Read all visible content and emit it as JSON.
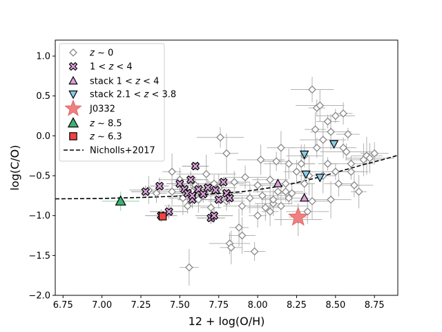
{
  "chart_data": {
    "type": "scatter",
    "xlabel": "12 + log(O/H)",
    "ylabel": "log(C/O)",
    "xlim": [
      6.7,
      8.9
    ],
    "ylim": [
      -2.0,
      1.2
    ],
    "x_ticks": [
      6.75,
      7.0,
      7.25,
      7.5,
      7.75,
      8.0,
      8.25,
      8.5,
      8.75
    ],
    "x_tick_labels": [
      "6.75",
      "7.00",
      "7.25",
      "7.50",
      "7.75",
      "8.00",
      "8.25",
      "8.50",
      "8.75"
    ],
    "y_ticks": [
      -2.0,
      -1.5,
      -1.0,
      -0.5,
      0.0,
      0.5,
      1.0
    ],
    "y_tick_labels": [
      "−2.0",
      "−1.5",
      "−1.0",
      "−0.5",
      "0.0",
      "0.5",
      "1.0"
    ],
    "legend_position": "top-left",
    "colors": {
      "z0_edge": "#888888",
      "z1_4_fill": "#dda0dd",
      "stack_1_4_fill": "#dda0dd",
      "stack_2_4_fill": "#87ceeb",
      "j0332_fill": "#f08080",
      "z8_5_fill": "#3cb371",
      "z6_3_fill": "#ef4444",
      "err_z0": "#b0b0b0",
      "err_z8_5": "#7fd6a6",
      "err_z6_3": "#f5a0a0",
      "nicholls": "#000000"
    },
    "series": [
      {
        "name": "z ~ 0",
        "legend_label": "z ~ 0",
        "marker": "diamond",
        "points": [
          [
            7.3,
            -0.68
          ],
          [
            7.35,
            -0.72
          ],
          [
            7.45,
            -0.7
          ],
          [
            7.45,
            -0.45
          ],
          [
            7.5,
            -0.55
          ],
          [
            7.52,
            -0.78
          ],
          [
            7.55,
            -0.88
          ],
          [
            7.58,
            -0.7
          ],
          [
            7.6,
            -0.62
          ],
          [
            7.62,
            -0.8
          ],
          [
            7.65,
            -0.75
          ],
          [
            7.67,
            -0.48
          ],
          [
            7.7,
            -0.9
          ],
          [
            7.72,
            -0.6
          ],
          [
            7.75,
            -0.65
          ],
          [
            7.76,
            -0.02
          ],
          [
            7.8,
            -0.22
          ],
          [
            7.8,
            -0.82
          ],
          [
            7.82,
            -1.35
          ],
          [
            7.83,
            -1.4
          ],
          [
            7.85,
            -0.58
          ],
          [
            7.88,
            -1.15
          ],
          [
            7.9,
            -1.25
          ],
          [
            7.9,
            -0.88
          ],
          [
            7.92,
            -0.52
          ],
          [
            7.95,
            -0.78
          ],
          [
            7.98,
            -1.45
          ],
          [
            8.0,
            -0.62
          ],
          [
            8.0,
            -1.0
          ],
          [
            8.02,
            -0.3
          ],
          [
            8.03,
            -0.75
          ],
          [
            8.05,
            -0.9
          ],
          [
            8.08,
            -0.55
          ],
          [
            8.1,
            -0.85
          ],
          [
            8.12,
            -0.32
          ],
          [
            8.13,
            -0.7
          ],
          [
            8.15,
            -0.15
          ],
          [
            8.15,
            -0.88
          ],
          [
            8.18,
            -0.6
          ],
          [
            8.2,
            -0.35
          ],
          [
            8.2,
            -0.78
          ],
          [
            8.22,
            -0.72
          ],
          [
            8.25,
            -0.45
          ],
          [
            8.26,
            -1.05
          ],
          [
            8.28,
            -0.35
          ],
          [
            8.3,
            -0.6
          ],
          [
            8.32,
            -0.95
          ],
          [
            8.33,
            -0.5
          ],
          [
            8.35,
            -0.82
          ],
          [
            8.35,
            0.58
          ],
          [
            8.37,
            0.08
          ],
          [
            8.38,
            -0.15
          ],
          [
            8.38,
            0.35
          ],
          [
            8.4,
            0.38
          ],
          [
            8.42,
            -0.05
          ],
          [
            8.42,
            -0.5
          ],
          [
            8.45,
            0.18
          ],
          [
            8.45,
            -0.35
          ],
          [
            8.47,
            0.05
          ],
          [
            8.5,
            -0.45
          ],
          [
            8.5,
            0.25
          ],
          [
            8.52,
            -0.6
          ],
          [
            8.55,
            0.28
          ],
          [
            8.55,
            -0.15
          ],
          [
            8.57,
            -0.2
          ],
          [
            8.58,
            0.02
          ],
          [
            8.6,
            -0.35
          ],
          [
            8.6,
            -0.45
          ],
          [
            8.62,
            -0.62
          ],
          [
            8.65,
            -0.7
          ],
          [
            8.68,
            -0.3
          ],
          [
            8.7,
            -0.25
          ],
          [
            8.72,
            -0.28
          ],
          [
            8.75,
            -0.22
          ],
          [
            7.56,
            -1.65
          ],
          [
            8.18,
            -0.7
          ],
          [
            8.1,
            -0.8
          ],
          [
            8.08,
            -0.95
          ],
          [
            8.3,
            -0.25
          ],
          [
            8.47,
            -0.8
          ]
        ]
      },
      {
        "name": "1 < z < 4",
        "legend_label": "1 < z < 4",
        "marker": "x",
        "points": [
          [
            7.28,
            -0.7
          ],
          [
            7.37,
            -0.63
          ],
          [
            7.38,
            -1.0
          ],
          [
            7.43,
            -0.95
          ],
          [
            7.5,
            -0.6
          ],
          [
            7.53,
            -0.67
          ],
          [
            7.55,
            -0.72
          ],
          [
            7.57,
            -0.55
          ],
          [
            7.58,
            -0.8
          ],
          [
            7.58,
            -0.75
          ],
          [
            7.6,
            -0.38
          ],
          [
            7.62,
            -0.67
          ],
          [
            7.65,
            -0.73
          ],
          [
            7.68,
            -0.65
          ],
          [
            7.7,
            -1.03
          ],
          [
            7.72,
            -1.0
          ],
          [
            7.73,
            -0.68
          ],
          [
            7.75,
            -0.8
          ],
          [
            7.78,
            -0.58
          ],
          [
            7.8,
            -0.72
          ],
          [
            7.82,
            -0.78
          ]
        ]
      },
      {
        "name": "stack 1 < z < 4",
        "legend_label": "stack 1 < z < 4",
        "marker": "triangle-up",
        "points": [
          [
            8.13,
            -0.6
          ],
          [
            8.3,
            -0.78
          ]
        ]
      },
      {
        "name": "stack 2.1 < z < 3.8",
        "legend_label": "stack 2.1 < z < 3.8",
        "marker": "triangle-down",
        "points": [
          [
            8.3,
            -0.23
          ],
          [
            8.31,
            -0.48
          ],
          [
            8.4,
            -0.52
          ],
          [
            8.49,
            -0.1
          ]
        ]
      },
      {
        "name": "J0332",
        "legend_label": "J0332",
        "marker": "star",
        "points": [
          [
            8.26,
            -1.02
          ]
        ]
      },
      {
        "name": "z ~ 8.5",
        "legend_label": "z ~ 8.5",
        "marker": "triangle-up",
        "points": [
          [
            7.12,
            -0.82
          ]
        ]
      },
      {
        "name": "z ~ 6.3",
        "legend_label": "z ~ 6.3",
        "marker": "square",
        "points": [
          [
            7.39,
            -1.01
          ]
        ]
      }
    ],
    "nicholls_2017": {
      "name": "Nicholls+2017",
      "legend_label": "Nicholls+2017",
      "style": "dashed",
      "x": [
        6.7,
        7.0,
        7.3,
        7.5,
        7.7,
        7.9,
        8.0,
        8.1,
        8.2,
        8.3,
        8.4,
        8.5,
        8.6,
        8.7,
        8.8,
        8.9
      ],
      "y": [
        -0.79,
        -0.785,
        -0.77,
        -0.755,
        -0.73,
        -0.7,
        -0.675,
        -0.645,
        -0.61,
        -0.565,
        -0.515,
        -0.46,
        -0.405,
        -0.35,
        -0.3,
        -0.245
      ]
    }
  }
}
